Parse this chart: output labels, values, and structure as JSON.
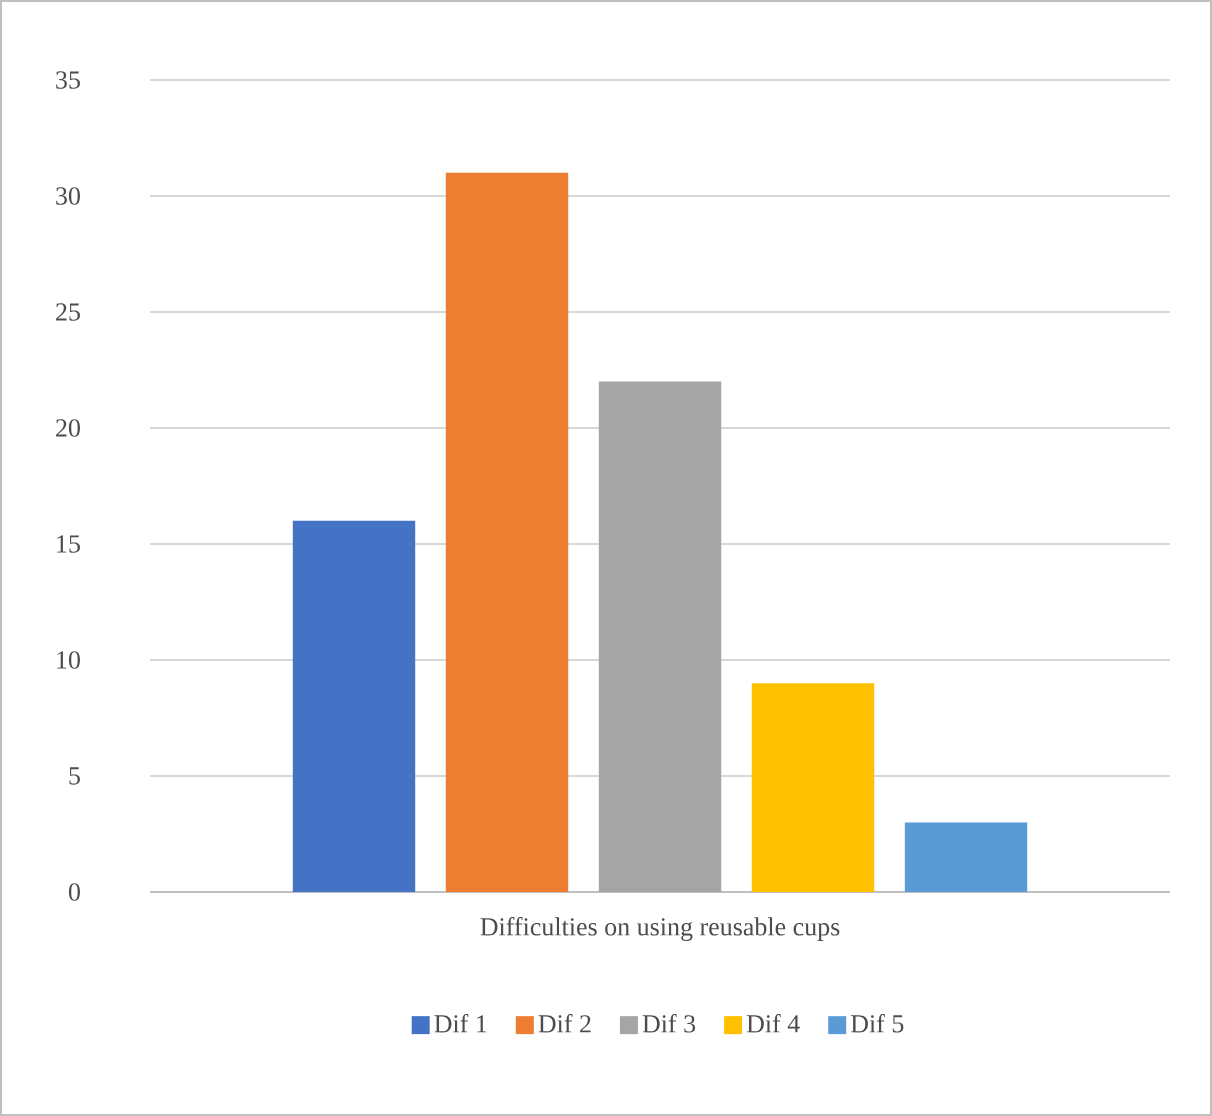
{
  "chart_data": {
    "type": "bar",
    "categories": [
      "Difficulties on using reusable cups"
    ],
    "series": [
      {
        "name": "Dif 1",
        "color": "#4472c4",
        "values": [
          16
        ]
      },
      {
        "name": "Dif 2",
        "color": "#ed7d31",
        "values": [
          31
        ]
      },
      {
        "name": "Dif 3",
        "color": "#a5a5a5",
        "values": [
          22
        ]
      },
      {
        "name": "Dif 4",
        "color": "#ffc000",
        "values": [
          9
        ]
      },
      {
        "name": "Dif 5",
        "color": "#5b9bd5",
        "values": [
          3
        ]
      }
    ],
    "ylim": [
      0,
      35
    ],
    "yticks": [
      0,
      5,
      10,
      15,
      20,
      25,
      30,
      35
    ],
    "grid": "y",
    "legend": "bottom"
  }
}
